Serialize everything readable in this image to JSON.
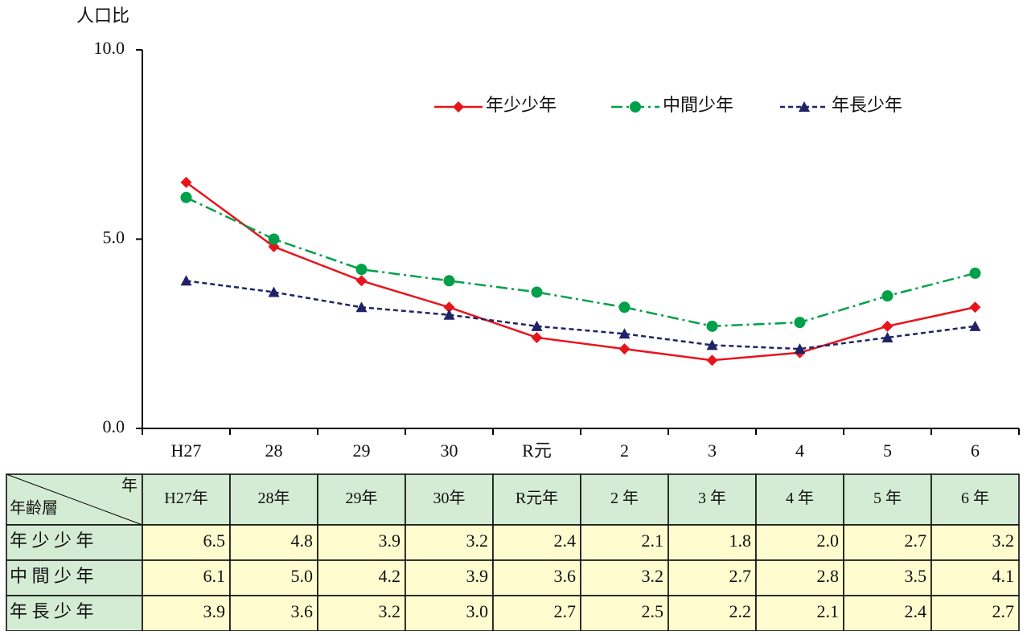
{
  "chart_data": {
    "type": "line",
    "y_label": "人口比",
    "categories": [
      "H27",
      "28",
      "29",
      "30",
      "R元",
      "2",
      "3",
      "4",
      "5",
      "6"
    ],
    "ylim": [
      0,
      10
    ],
    "yticks": [
      {
        "value": 0,
        "label": "0.0"
      },
      {
        "value": 5,
        "label": "5.0"
      },
      {
        "value": 10,
        "label": "10.0"
      }
    ],
    "series": [
      {
        "name": "年少少年",
        "color": "#e8141c",
        "marker": "diamond",
        "line_style": "solid",
        "values": [
          6.5,
          4.8,
          3.9,
          3.2,
          2.4,
          2.1,
          1.8,
          2.0,
          2.7,
          3.2
        ]
      },
      {
        "name": "中間少年",
        "color": "#00a04a",
        "marker": "circle",
        "line_style": "dashdot",
        "values": [
          6.1,
          5.0,
          4.2,
          3.9,
          3.6,
          3.2,
          2.7,
          2.8,
          3.5,
          4.1
        ]
      },
      {
        "name": "年長少年",
        "color": "#1f2366",
        "marker": "triangle",
        "line_style": "dashed",
        "values": [
          3.9,
          3.6,
          3.2,
          3.0,
          2.7,
          2.5,
          2.2,
          2.1,
          2.4,
          2.7
        ]
      }
    ],
    "table": {
      "corner_top": "年",
      "corner_bottom": "年齢層",
      "columns": [
        "H27年",
        "28年",
        "29年",
        "30年",
        "R元年",
        "2 年",
        "3 年",
        "4 年",
        "5 年",
        "6 年"
      ],
      "rows": [
        {
          "label": "年 少 少 年",
          "cells": [
            "6.5",
            "4.8",
            "3.9",
            "3.2",
            "2.4",
            "2.1",
            "1.8",
            "2.0",
            "2.7",
            "3.2"
          ]
        },
        {
          "label": "中 間 少 年",
          "cells": [
            "6.1",
            "5.0",
            "4.2",
            "3.9",
            "3.6",
            "3.2",
            "2.7",
            "2.8",
            "3.5",
            "4.1"
          ]
        },
        {
          "label": "年 長 少 年",
          "cells": [
            "3.9",
            "3.6",
            "3.2",
            "3.0",
            "2.7",
            "2.5",
            "2.2",
            "2.1",
            "2.4",
            "2.7"
          ]
        }
      ]
    }
  }
}
